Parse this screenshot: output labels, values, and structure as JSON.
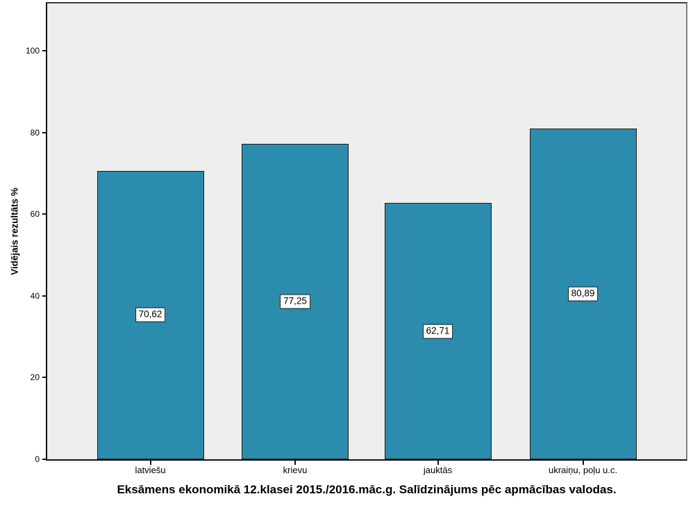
{
  "chart_data": {
    "type": "bar",
    "title": "Eksāmens ekonomikā 12.klasei 2015./2016.māc.g. Salīdzinājums pēc apmācības valodas.",
    "ylabel": "Vidējais rezultāts %",
    "xlabel": "",
    "categories": [
      "latviešu",
      "krievu",
      "jauktās",
      "ukraiņu, poļu u.c."
    ],
    "values": [
      70.62,
      77.25,
      62.71,
      80.89
    ],
    "value_labels": [
      "70,62",
      "77,25",
      "62,71",
      "80,89"
    ],
    "y_ticks": [
      "0",
      "20",
      "40",
      "60",
      "80",
      "100"
    ],
    "y_tick_values": [
      0,
      20,
      40,
      60,
      80,
      100
    ],
    "ylim": [
      0,
      111.5
    ],
    "grid": false,
    "legend": "none",
    "colors": {
      "bar_fill": "#2B8CAD",
      "bar_border": "#1C1C1C",
      "plot_bg": "#EEEEEE",
      "axis": "#101010",
      "frame_right": "#7F7F7F",
      "label_box_bg": "#FFFFFF"
    }
  }
}
